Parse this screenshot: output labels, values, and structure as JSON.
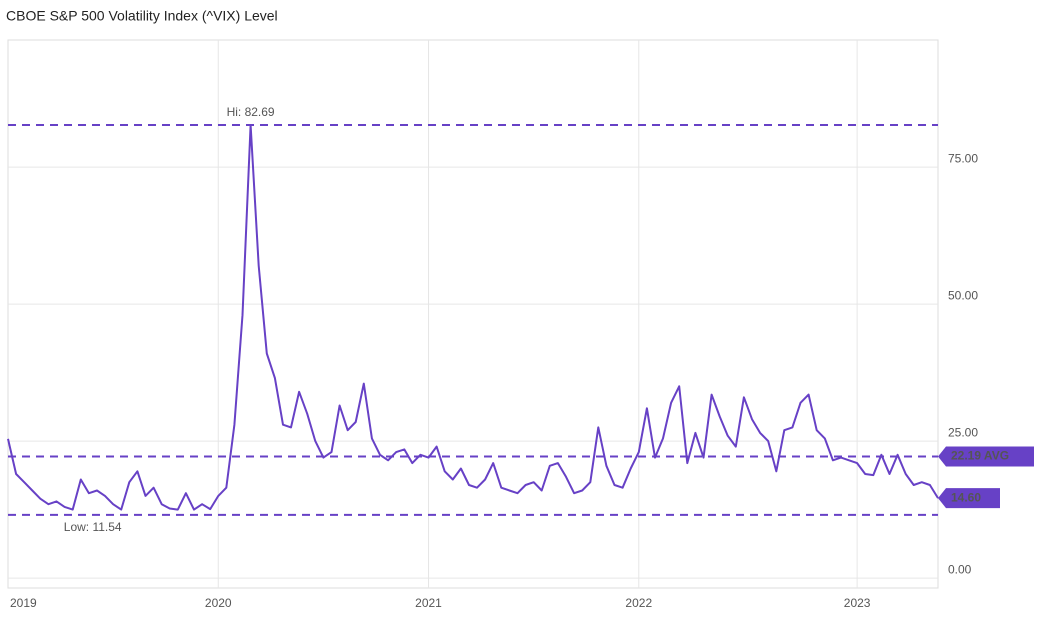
{
  "chart_data": {
    "type": "line",
    "title": "CBOE S&P 500 Volatility Index (^VIX) Level",
    "categories": [
      "2019",
      null,
      null,
      null,
      null,
      null,
      null,
      null,
      null,
      null,
      null,
      null,
      null,
      null,
      null,
      null,
      null,
      null,
      null,
      null,
      null,
      null,
      null,
      null,
      null,
      null,
      "2020",
      null,
      null,
      null,
      null,
      null,
      null,
      null,
      null,
      null,
      null,
      null,
      null,
      null,
      null,
      null,
      null,
      null,
      null,
      null,
      null,
      null,
      null,
      null,
      null,
      null,
      "2021",
      null,
      null,
      null,
      null,
      null,
      null,
      null,
      null,
      null,
      null,
      null,
      null,
      null,
      null,
      null,
      null,
      null,
      null,
      null,
      null,
      null,
      null,
      null,
      null,
      null,
      "2022",
      null,
      null,
      null,
      null,
      null,
      null,
      null,
      null,
      null,
      null,
      null,
      null,
      null,
      null,
      null,
      null,
      null,
      null,
      null,
      null,
      null,
      null,
      null,
      null,
      null,
      null,
      "2023",
      null,
      null,
      null,
      null,
      null,
      null,
      null,
      null,
      null,
      null
    ],
    "values": [
      25.4,
      19.0,
      17.5,
      16.0,
      14.5,
      13.5,
      14.0,
      13.0,
      12.5,
      18.0,
      15.5,
      16.0,
      15.0,
      13.5,
      12.5,
      17.5,
      19.5,
      15.0,
      16.5,
      13.5,
      12.7,
      12.5,
      15.5,
      12.5,
      13.5,
      12.6,
      15.0,
      16.5,
      28.0,
      48.0,
      82.69,
      57.0,
      41.0,
      36.5,
      28.0,
      27.5,
      34.0,
      30.0,
      25.0,
      22.0,
      23.0,
      31.5,
      27.0,
      28.5,
      35.5,
      25.5,
      22.5,
      21.5,
      23.0,
      23.5,
      21.0,
      22.5,
      22.0,
      24.0,
      19.5,
      18.0,
      20.0,
      17.0,
      16.5,
      18.0,
      21.0,
      16.5,
      16.0,
      15.5,
      17.0,
      17.5,
      16.0,
      20.5,
      21.0,
      18.5,
      15.5,
      16.0,
      17.5,
      27.5,
      20.5,
      17.0,
      16.5,
      20.0,
      23.0,
      31.0,
      22.0,
      25.5,
      32.0,
      35.0,
      21.0,
      26.5,
      22.0,
      33.5,
      29.5,
      26.0,
      24.0,
      33.0,
      29.0,
      26.5,
      25.0,
      19.5,
      27.0,
      27.5,
      32.0,
      33.5,
      27.0,
      25.5,
      21.5,
      22.0,
      21.5,
      21.0,
      19.0,
      18.8,
      22.5,
      19.0,
      22.5,
      19.0,
      17.0,
      17.5,
      17.0,
      14.6
    ],
    "color": "#6741c6",
    "ylim": [
      -1.8,
      98.2
    ],
    "yticks": [
      {
        "value": 0,
        "label": "0.00"
      },
      {
        "value": 25,
        "label": "25.00"
      },
      {
        "value": 50,
        "label": "50.00"
      },
      {
        "value": 75,
        "label": "75.00"
      }
    ],
    "grid": true,
    "reference_lines": [
      {
        "value": 82.69,
        "label": "Hi: 82.69"
      },
      {
        "value": 11.54,
        "label": "Low: 11.54"
      },
      {
        "value": 22.19,
        "label": "22.19 AVG"
      }
    ],
    "last_value": {
      "value": 14.6,
      "label": "14.60"
    }
  }
}
